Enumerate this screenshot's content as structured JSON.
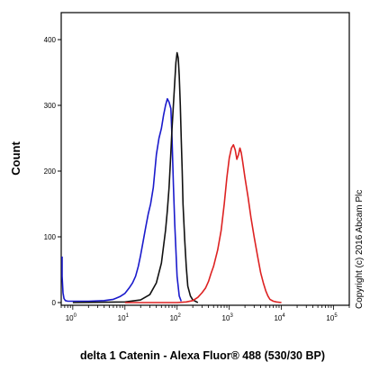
{
  "chart_data": {
    "type": "line",
    "title": "",
    "xlabel": "delta 1 Catenin - Alexa Fluor® 488 (530/30 BP)",
    "ylabel": "Count",
    "x_scale": "log",
    "xlim": [
      0.6,
      200000
    ],
    "ylim": [
      0,
      450
    ],
    "x_ticks": [
      {
        "base": "10",
        "exp": "0",
        "value": 1
      },
      {
        "base": "10",
        "exp": "1",
        "value": 10
      },
      {
        "base": "10",
        "exp": "2",
        "value": 100
      },
      {
        "base": "10",
        "exp": "3",
        "value": 1000
      },
      {
        "base": "10",
        "exp": "4",
        "value": 10000
      },
      {
        "base": "10",
        "exp": "5",
        "value": 100000
      }
    ],
    "y_ticks": [
      "0",
      "100",
      "200",
      "300",
      "400"
    ],
    "y_tick_values": [
      0,
      100,
      200,
      300,
      400
    ],
    "grid": false,
    "legend": "none",
    "annotation": "Copyright (c) 2016 Abcam Plc",
    "series": [
      {
        "color": "#1a1acc",
        "x": [
          0.6,
          0.62,
          0.65,
          0.68,
          0.72,
          0.8,
          1,
          2,
          4,
          6,
          8,
          10,
          12,
          14,
          16,
          18,
          20,
          22,
          25,
          28,
          31,
          35,
          40,
          45,
          50,
          55,
          60,
          65,
          70,
          73,
          76,
          80,
          85,
          90,
          100,
          110,
          120
        ],
        "y": [
          70,
          40,
          15,
          6,
          3,
          2,
          2,
          2,
          3,
          5,
          9,
          14,
          22,
          30,
          40,
          55,
          72,
          90,
          115,
          135,
          150,
          175,
          225,
          250,
          265,
          285,
          300,
          310,
          305,
          300,
          295,
          250,
          180,
          120,
          40,
          10,
          2
        ]
      },
      {
        "color": "#111111",
        "x": [
          1,
          10,
          20,
          30,
          40,
          50,
          60,
          65,
          70,
          75,
          80,
          85,
          90,
          95,
          100,
          105,
          110,
          115,
          120,
          125,
          130,
          140,
          150,
          160,
          180,
          200,
          250
        ],
        "y": [
          0,
          1,
          4,
          12,
          30,
          60,
          110,
          140,
          175,
          220,
          265,
          300,
          335,
          365,
          380,
          372,
          345,
          300,
          250,
          200,
          150,
          95,
          55,
          25,
          10,
          4,
          0
        ]
      },
      {
        "color": "#dd2222",
        "x": [
          10,
          100,
          150,
          200,
          250,
          300,
          350,
          400,
          450,
          500,
          600,
          700,
          800,
          900,
          1000,
          1100,
          1200,
          1300,
          1400,
          1500,
          1600,
          1700,
          1800,
          2000,
          2300,
          2600,
          3000,
          3500,
          4000,
          4500,
          5000,
          5500,
          6000,
          7000,
          8000,
          10000
        ],
        "y": [
          0,
          0,
          1,
          3,
          8,
          15,
          22,
          32,
          45,
          55,
          80,
          110,
          150,
          190,
          220,
          235,
          240,
          232,
          218,
          225,
          235,
          228,
          215,
          190,
          160,
          130,
          100,
          70,
          45,
          30,
          18,
          10,
          5,
          2,
          1,
          0
        ]
      }
    ]
  }
}
